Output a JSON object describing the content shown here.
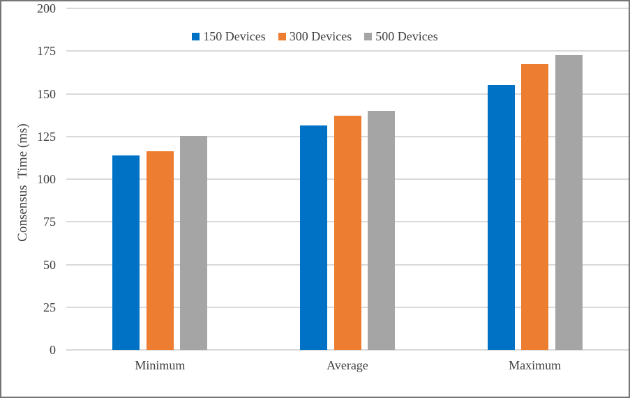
{
  "chart_data": {
    "type": "bar",
    "title": "",
    "categories": [
      "Minimum",
      "Average",
      "Maximum"
    ],
    "series": [
      {
        "name": "150 Devices",
        "color": "#0072C6",
        "values": [
          114,
          131.5,
          155
        ]
      },
      {
        "name": "300 Devices",
        "color": "#ED7D31",
        "values": [
          116.5,
          137,
          167.5
        ]
      },
      {
        "name": "500 Devices",
        "color": "#A5A5A5",
        "values": [
          125.5,
          140,
          172.5
        ]
      }
    ],
    "xlabel": "",
    "ylabel": "Consensus  Time (ms)",
    "ylim": [
      0,
      200
    ],
    "ytick_step": 25,
    "yticks": [
      "0",
      "25",
      "50",
      "75",
      "100",
      "125",
      "150",
      "175",
      "200"
    ],
    "grid": true,
    "legend_position": "top-center",
    "colors": {
      "gridline": "#D9D9D9",
      "axis_text": "#404040",
      "frame_border": "#757575",
      "background": "#FFFFFF"
    }
  }
}
